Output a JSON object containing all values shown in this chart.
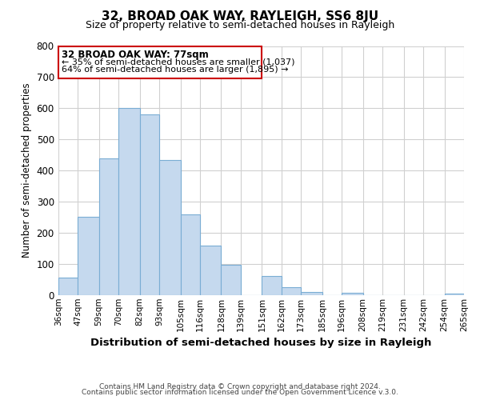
{
  "title": "32, BROAD OAK WAY, RAYLEIGH, SS6 8JU",
  "subtitle": "Size of property relative to semi-detached houses in Rayleigh",
  "xlabel": "Distribution of semi-detached houses by size in Rayleigh",
  "ylabel": "Number of semi-detached properties",
  "footer1": "Contains HM Land Registry data © Crown copyright and database right 2024.",
  "footer2": "Contains public sector information licensed under the Open Government Licence v.3.0.",
  "annotation_title": "32 BROAD OAK WAY: 77sqm",
  "annotation_line1": "← 35% of semi-detached houses are smaller (1,037)",
  "annotation_line2": "64% of semi-detached houses are larger (1,895) →",
  "bar_left_edges": [
    36,
    47,
    59,
    70,
    82,
    93,
    105,
    116,
    128,
    139,
    151,
    162,
    173,
    185,
    196,
    208,
    219,
    231,
    242,
    254
  ],
  "bar_heights": [
    57,
    250,
    440,
    600,
    580,
    435,
    258,
    160,
    97,
    0,
    62,
    25,
    10,
    0,
    8,
    0,
    0,
    0,
    0,
    5
  ],
  "bar_widths": [
    11,
    12,
    11,
    12,
    11,
    12,
    11,
    12,
    11,
    12,
    11,
    11,
    12,
    11,
    12,
    11,
    12,
    11,
    12,
    11
  ],
  "tick_labels": [
    "36sqm",
    "47sqm",
    "59sqm",
    "70sqm",
    "82sqm",
    "93sqm",
    "105sqm",
    "116sqm",
    "128sqm",
    "139sqm",
    "151sqm",
    "162sqm",
    "173sqm",
    "185sqm",
    "196sqm",
    "208sqm",
    "219sqm",
    "231sqm",
    "242sqm",
    "254sqm",
    "265sqm"
  ],
  "tick_positions": [
    36,
    47,
    59,
    70,
    82,
    93,
    105,
    116,
    128,
    139,
    151,
    162,
    173,
    185,
    196,
    208,
    219,
    231,
    242,
    254,
    265
  ],
  "ylim": [
    0,
    800
  ],
  "xlim": [
    36,
    265
  ],
  "property_x": 77,
  "bar_color": "#c5d9ee",
  "bar_edge_color": "#7aadd4",
  "annotation_box_color": "#ffffff",
  "annotation_box_edge": "#cc0000",
  "grid_color": "#d0d0d0",
  "background_color": "#ffffff"
}
